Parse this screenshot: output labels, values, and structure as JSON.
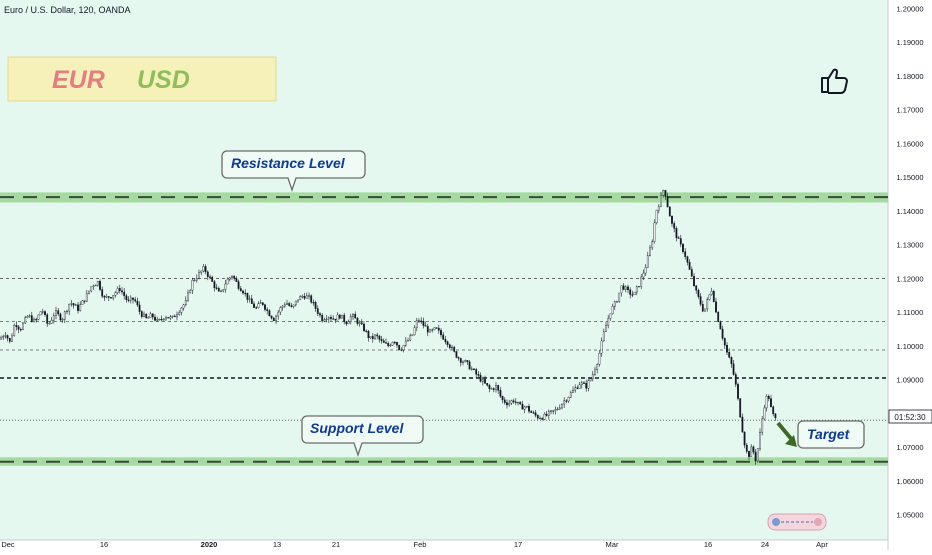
{
  "header": {
    "symbol_line": "Euro / U.S. Dollar, 120, OANDA"
  },
  "badge": {
    "base": "EUR",
    "quote": "USD",
    "base_color": "#e57c82",
    "quote_color": "#8fbd5c"
  },
  "colors": {
    "chart_bg": "#e5f8f0",
    "level_band": "#a5dba0",
    "candle": "#131722",
    "annotation_text": "#0d3b94",
    "arrow": "#3f6a24"
  },
  "icons": {
    "thumb": "thumbs-up-icon"
  },
  "current_price_tag": "01:52:30",
  "chart_data": {
    "type": "candlestick",
    "title": "Euro / U.S. Dollar, 120, OANDA",
    "ylim": [
      1.0425,
      1.2025
    ],
    "y_ticks": [
      "1.20000",
      "1.19000",
      "1.18000",
      "1.17000",
      "1.16000",
      "1.15000",
      "1.14000",
      "1.13000",
      "1.12000",
      "1.11000",
      "1.10000",
      "1.09000",
      "1.08000",
      "1.07000",
      "1.06000",
      "1.05000"
    ],
    "x_ticks": [
      "Dec",
      "16",
      "2020",
      "13",
      "21",
      "Feb",
      "17",
      "Mar",
      "16",
      "24",
      "Apr"
    ],
    "price_path": [
      [
        0,
        1.102
      ],
      [
        5,
        1.104
      ],
      [
        10,
        1.101
      ],
      [
        15,
        1.107
      ],
      [
        20,
        1.105
      ],
      [
        28,
        1.109
      ],
      [
        35,
        1.107
      ],
      [
        42,
        1.111
      ],
      [
        48,
        1.106
      ],
      [
        55,
        1.11
      ],
      [
        62,
        1.108
      ],
      [
        70,
        1.113
      ],
      [
        78,
        1.111
      ],
      [
        85,
        1.114
      ],
      [
        92,
        1.118
      ],
      [
        98,
        1.119
      ],
      [
        104,
        1.114
      ],
      [
        112,
        1.115
      ],
      [
        120,
        1.117
      ],
      [
        128,
        1.113
      ],
      [
        134,
        1.114
      ],
      [
        140,
        1.11
      ],
      [
        146,
        1.108
      ],
      [
        152,
        1.109
      ],
      [
        158,
        1.107
      ],
      [
        165,
        1.109
      ],
      [
        172,
        1.108
      ],
      [
        180,
        1.111
      ],
      [
        186,
        1.113
      ],
      [
        192,
        1.119
      ],
      [
        198,
        1.121
      ],
      [
        204,
        1.123
      ],
      [
        208,
        1.121
      ],
      [
        214,
        1.118
      ],
      [
        220,
        1.115
      ],
      [
        226,
        1.119
      ],
      [
        232,
        1.121
      ],
      [
        238,
        1.118
      ],
      [
        244,
        1.116
      ],
      [
        250,
        1.113
      ],
      [
        256,
        1.111
      ],
      [
        262,
        1.113
      ],
      [
        268,
        1.11
      ],
      [
        274,
        1.108
      ],
      [
        280,
        1.111
      ],
      [
        286,
        1.113
      ],
      [
        292,
        1.111
      ],
      [
        298,
        1.114
      ],
      [
        304,
        1.115
      ],
      [
        310,
        1.114
      ],
      [
        316,
        1.111
      ],
      [
        322,
        1.108
      ],
      [
        328,
        1.109
      ],
      [
        334,
        1.108
      ],
      [
        340,
        1.109
      ],
      [
        346,
        1.107
      ],
      [
        352,
        1.109
      ],
      [
        358,
        1.107
      ],
      [
        364,
        1.105
      ],
      [
        370,
        1.102
      ],
      [
        376,
        1.103
      ],
      [
        382,
        1.101
      ],
      [
        388,
        1.1
      ],
      [
        394,
        1.102
      ],
      [
        400,
        1.099
      ],
      [
        406,
        1.101
      ],
      [
        412,
        1.103
      ],
      [
        418,
        1.108
      ],
      [
        424,
        1.106
      ],
      [
        430,
        1.104
      ],
      [
        436,
        1.105
      ],
      [
        442,
        1.103
      ],
      [
        448,
        1.101
      ],
      [
        454,
        1.098
      ],
      [
        460,
        1.096
      ],
      [
        466,
        1.095
      ],
      [
        472,
        1.093
      ],
      [
        478,
        1.091
      ],
      [
        484,
        1.089
      ],
      [
        490,
        1.087
      ],
      [
        496,
        1.088
      ],
      [
        502,
        1.084
      ],
      [
        508,
        1.083
      ],
      [
        514,
        1.084
      ],
      [
        520,
        1.082
      ],
      [
        526,
        1.082
      ],
      [
        532,
        1.08
      ],
      [
        538,
        1.079
      ],
      [
        544,
        1.079
      ],
      [
        550,
        1.08
      ],
      [
        556,
        1.081
      ],
      [
        562,
        1.083
      ],
      [
        568,
        1.085
      ],
      [
        574,
        1.087
      ],
      [
        580,
        1.089
      ],
      [
        586,
        1.088
      ],
      [
        592,
        1.091
      ],
      [
        598,
        1.096
      ],
      [
        604,
        1.104
      ],
      [
        610,
        1.11
      ],
      [
        616,
        1.113
      ],
      [
        622,
        1.118
      ],
      [
        628,
        1.116
      ],
      [
        634,
        1.115
      ],
      [
        640,
        1.119
      ],
      [
        646,
        1.124
      ],
      [
        652,
        1.131
      ],
      [
        656,
        1.14
      ],
      [
        660,
        1.143
      ],
      [
        664,
        1.147
      ],
      [
        668,
        1.141
      ],
      [
        672,
        1.136
      ],
      [
        676,
        1.133
      ],
      [
        680,
        1.13
      ],
      [
        684,
        1.128
      ],
      [
        688,
        1.124
      ],
      [
        692,
        1.12
      ],
      [
        696,
        1.116
      ],
      [
        700,
        1.113
      ],
      [
        704,
        1.11
      ],
      [
        708,
        1.114
      ],
      [
        712,
        1.117
      ],
      [
        716,
        1.11
      ],
      [
        720,
        1.106
      ],
      [
        724,
        1.101
      ],
      [
        728,
        1.097
      ],
      [
        732,
        1.094
      ],
      [
        736,
        1.088
      ],
      [
        740,
        1.08
      ],
      [
        744,
        1.072
      ],
      [
        748,
        1.067
      ],
      [
        752,
        1.07
      ],
      [
        756,
        1.066
      ],
      [
        760,
        1.074
      ],
      [
        764,
        1.082
      ],
      [
        768,
        1.086
      ],
      [
        772,
        1.08
      ],
      [
        776,
        1.078
      ]
    ],
    "levels": [
      {
        "name": "Resistance Level",
        "value": 1.1441,
        "band": [
          1.1425,
          1.1455
        ]
      },
      {
        "name": "Support Level",
        "value": 1.0657,
        "band": [
          1.0645,
          1.067
        ]
      }
    ],
    "horizontal_lines": [
      {
        "value": 1.12,
        "style": "thin-dashed"
      },
      {
        "value": 1.1072,
        "style": "thin-dashed"
      },
      {
        "value": 1.0988,
        "style": "thin-dashed"
      },
      {
        "value": 1.0905,
        "style": "bold-dashed"
      },
      {
        "value": 1.078,
        "style": "dotted"
      }
    ],
    "current_price": 1.0768,
    "annotations": [
      "Resistance Level",
      "Support Level",
      "Target"
    ],
    "grid": false
  }
}
